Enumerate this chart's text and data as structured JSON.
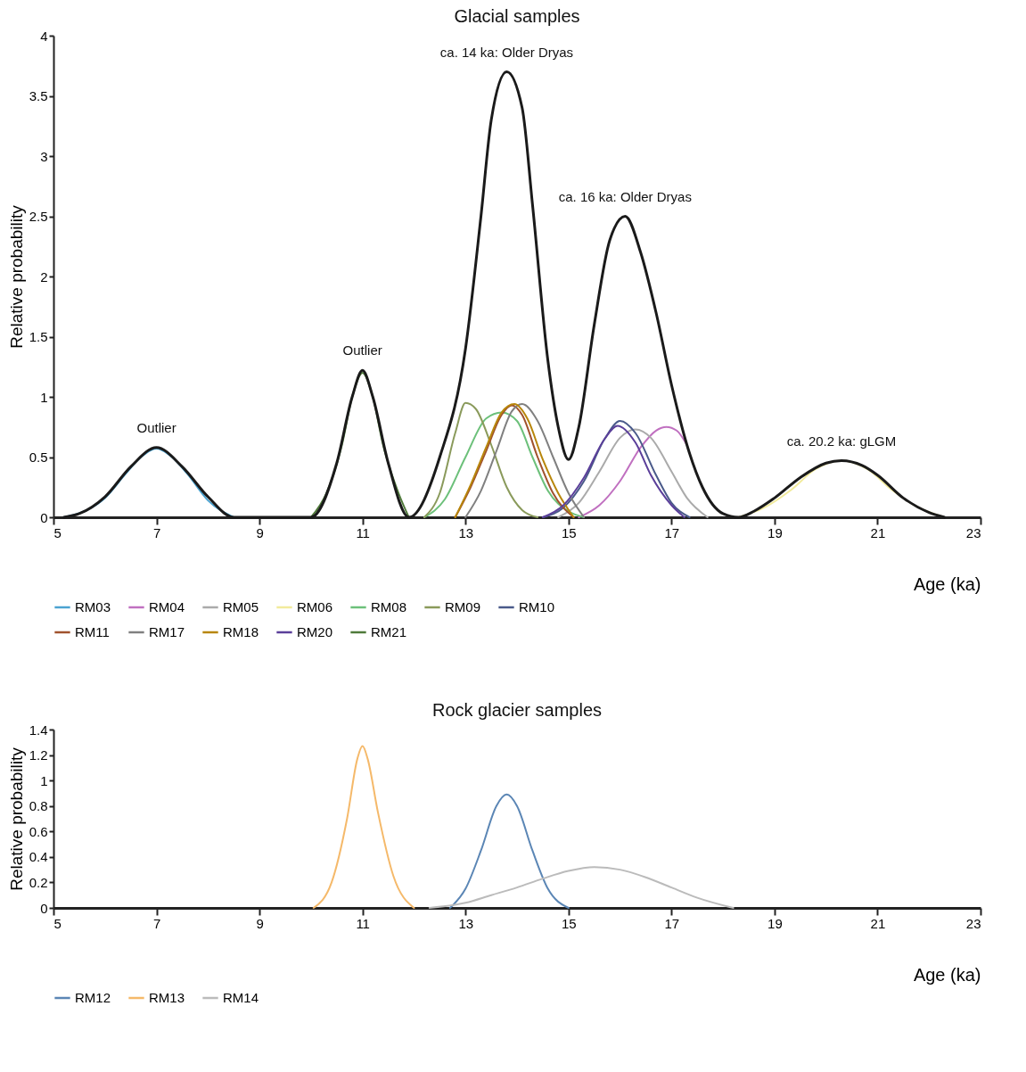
{
  "chart_data": [
    {
      "type": "line",
      "title": "Glacial samples",
      "xlabel": "Age (ka)",
      "ylabel": "Relative probability",
      "xlim": [
        5,
        23
      ],
      "xticks": [
        5,
        7,
        9,
        11,
        13,
        15,
        17,
        19,
        21,
        23
      ],
      "ylim": [
        0,
        4
      ],
      "yticks": [
        0,
        0.5,
        1,
        1.5,
        2,
        2.5,
        3,
        3.5,
        4
      ],
      "legend": "bottom",
      "annotations": [
        {
          "text": "Outlier",
          "x": 7,
          "y": 0.58
        },
        {
          "text": "Outlier",
          "x": 11,
          "y": 1.22
        },
        {
          "text": "ca. 14 ka: Older Dryas",
          "x": 13.8,
          "y": 3.7
        },
        {
          "text": "ca. 16 ka: Older Dryas",
          "x": 16.1,
          "y": 2.5
        },
        {
          "text": "ca. 20.2 ka: gLGM",
          "x": 20.3,
          "y": 0.47
        }
      ],
      "series": [
        {
          "name": "RM03",
          "color": "#4ba3d1",
          "x": [
            5.2,
            5.6,
            6,
            6.4,
            6.7,
            7,
            7.3,
            7.6,
            8,
            8.5
          ],
          "values": [
            0,
            0.05,
            0.16,
            0.36,
            0.5,
            0.57,
            0.5,
            0.36,
            0.14,
            0
          ]
        },
        {
          "name": "RM04",
          "color": "#c070c0",
          "x": [
            15.2,
            15.6,
            16,
            16.4,
            16.7,
            16.9,
            17.1,
            17.3
          ],
          "values": [
            0,
            0.1,
            0.3,
            0.58,
            0.72,
            0.75,
            0.72,
            0.6
          ]
        },
        {
          "name": "RM05",
          "color": "#aaaaaa",
          "x": [
            14.8,
            15.2,
            15.6,
            16,
            16.3,
            16.6,
            17,
            17.3,
            17.7
          ],
          "values": [
            0,
            0.12,
            0.38,
            0.66,
            0.73,
            0.66,
            0.38,
            0.16,
            0
          ]
        },
        {
          "name": "RM06",
          "color": "#f2eb9c",
          "x": [
            18.3,
            18.8,
            19.3,
            19.8,
            20.3,
            20.8,
            21.3,
            21.8,
            22.3
          ],
          "values": [
            0,
            0.08,
            0.22,
            0.4,
            0.47,
            0.4,
            0.22,
            0.08,
            0
          ]
        },
        {
          "name": "RM08",
          "color": "#6cc07a",
          "x": [
            12.2,
            12.6,
            13,
            13.4,
            13.7,
            14,
            14.3,
            14.6,
            15,
            15.3
          ],
          "values": [
            0,
            0.15,
            0.5,
            0.82,
            0.87,
            0.8,
            0.5,
            0.22,
            0.05,
            0
          ]
        },
        {
          "name": "RM09",
          "color": "#8a9a5b",
          "x": [
            12.2,
            12.5,
            12.8,
            13,
            13.2,
            13.5,
            13.8,
            14.1,
            14.4
          ],
          "values": [
            0,
            0.2,
            0.7,
            0.95,
            0.9,
            0.6,
            0.25,
            0.06,
            0
          ]
        },
        {
          "name": "RM10",
          "color": "#4a5a8a",
          "x": [
            14.5,
            14.9,
            15.3,
            15.7,
            16,
            16.3,
            16.7,
            17,
            17.35
          ],
          "values": [
            0,
            0.08,
            0.3,
            0.65,
            0.8,
            0.7,
            0.35,
            0.12,
            0
          ]
        },
        {
          "name": "RM11",
          "color": "#a0522d",
          "x": [
            12.8,
            13.1,
            13.4,
            13.7,
            13.9,
            14.1,
            14.4,
            14.7,
            15.1
          ],
          "values": [
            0,
            0.25,
            0.55,
            0.85,
            0.93,
            0.85,
            0.5,
            0.2,
            0
          ]
        },
        {
          "name": "RM17",
          "color": "#808080",
          "x": [
            13,
            13.3,
            13.6,
            13.9,
            14.1,
            14.4,
            14.7,
            15,
            15.3
          ],
          "values": [
            0,
            0.22,
            0.55,
            0.88,
            0.94,
            0.8,
            0.5,
            0.2,
            0
          ]
        },
        {
          "name": "RM18",
          "color": "#b8860b",
          "x": [
            12.8,
            13.1,
            13.4,
            13.7,
            13.95,
            14.2,
            14.5,
            14.8,
            15.1
          ],
          "values": [
            0,
            0.27,
            0.58,
            0.87,
            0.94,
            0.82,
            0.48,
            0.2,
            0
          ]
        },
        {
          "name": "RM20",
          "color": "#5b3f9a",
          "x": [
            14.5,
            14.9,
            15.3,
            15.7,
            15.95,
            16.3,
            16.6,
            17,
            17.25
          ],
          "values": [
            0,
            0.1,
            0.33,
            0.65,
            0.76,
            0.62,
            0.35,
            0.1,
            0
          ]
        },
        {
          "name": "RM21",
          "color": "#4f7a3a",
          "x": [
            10,
            10.3,
            10.6,
            10.8,
            11,
            11.2,
            11.4,
            11.7,
            11.9
          ],
          "values": [
            0,
            0.2,
            0.6,
            1.0,
            1.2,
            1.0,
            0.6,
            0.2,
            0
          ]
        },
        {
          "color": "#1a1a1a",
          "x": [
            5.2,
            5.5,
            6,
            6.5,
            7,
            7.5,
            8,
            8.5,
            10,
            10.5,
            10.8,
            11,
            11.2,
            11.5,
            11.9,
            12.5,
            13,
            13.3,
            13.5,
            13.8,
            14.1,
            14.3,
            14.6,
            14.8,
            15,
            15.2,
            15.5,
            15.8,
            16.1,
            16.4,
            16.7,
            17,
            17.3,
            17.6,
            18,
            18.3,
            18.6,
            19,
            19.5,
            20,
            20.3,
            20.7,
            21,
            21.5,
            22,
            22.3
          ],
          "values": [
            0,
            0.03,
            0.17,
            0.42,
            0.58,
            0.42,
            0.17,
            0,
            0,
            0.45,
            1.0,
            1.22,
            1.0,
            0.45,
            0,
            0.5,
            1.4,
            2.5,
            3.3,
            3.7,
            3.4,
            2.6,
            1.3,
            0.75,
            0.48,
            0.75,
            1.6,
            2.3,
            2.5,
            2.2,
            1.7,
            1.1,
            0.6,
            0.25,
            0.03,
            0,
            0.05,
            0.16,
            0.33,
            0.45,
            0.47,
            0.43,
            0.35,
            0.16,
            0.04,
            0
          ]
        }
      ]
    },
    {
      "type": "line",
      "title": "Rock glacier samples",
      "xlabel": "Age (ka)",
      "ylabel": "Relative probability",
      "xlim": [
        5,
        23
      ],
      "xticks": [
        5,
        7,
        9,
        11,
        13,
        15,
        17,
        19,
        21,
        23
      ],
      "ylim": [
        0,
        1.4
      ],
      "yticks": [
        0,
        0.2,
        0.4,
        0.6,
        0.8,
        1,
        1.2,
        1.4
      ],
      "legend": "bottom",
      "series": [
        {
          "name": "RM12",
          "color": "#5b86b5",
          "x": [
            12.7,
            13,
            13.3,
            13.6,
            13.8,
            14,
            14.3,
            14.6,
            15
          ],
          "values": [
            0,
            0.15,
            0.45,
            0.8,
            0.89,
            0.8,
            0.45,
            0.15,
            0
          ]
        },
        {
          "name": "RM13",
          "color": "#f5b96a",
          "x": [
            10.05,
            10.4,
            10.7,
            10.9,
            11,
            11.1,
            11.3,
            11.6,
            12
          ],
          "values": [
            0,
            0.2,
            0.7,
            1.17,
            1.27,
            1.17,
            0.75,
            0.25,
            0
          ]
        },
        {
          "name": "RM14",
          "color": "#bbbbbb",
          "x": [
            12.3,
            13,
            13.5,
            14,
            14.5,
            15,
            15.5,
            16,
            16.5,
            17,
            17.5,
            18.2
          ],
          "values": [
            0,
            0.04,
            0.1,
            0.16,
            0.23,
            0.29,
            0.32,
            0.3,
            0.24,
            0.16,
            0.08,
            0
          ]
        }
      ]
    }
  ]
}
